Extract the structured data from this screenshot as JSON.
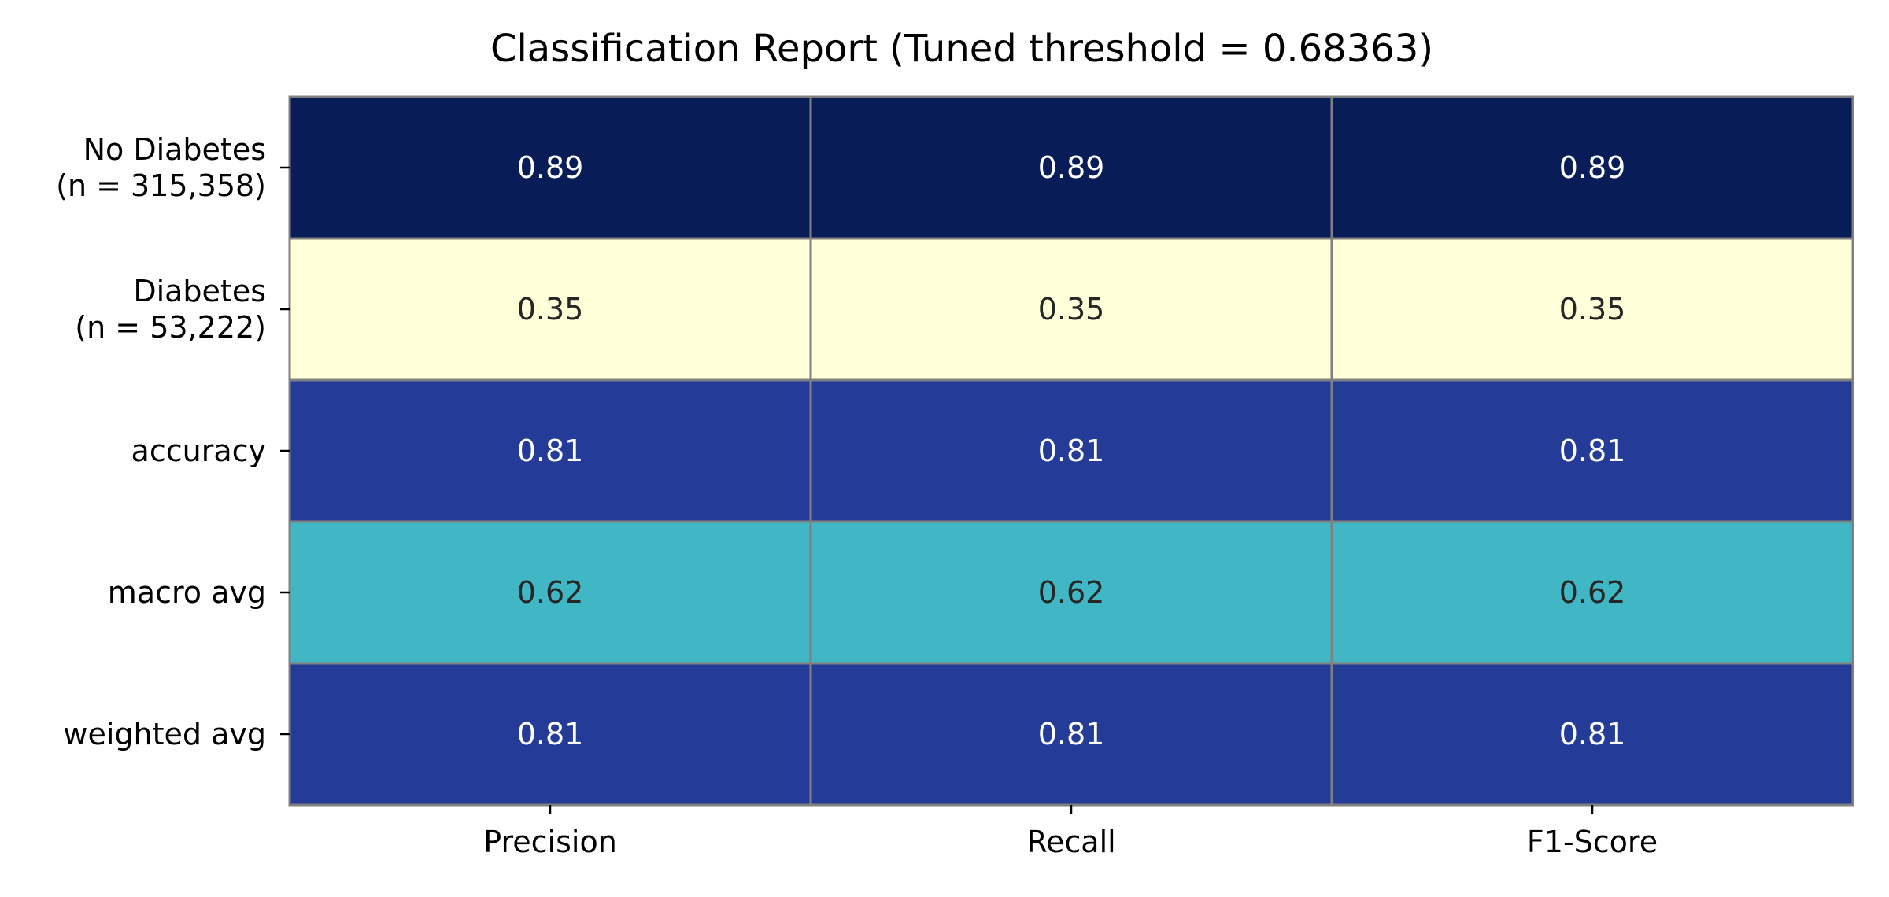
{
  "chart_data": {
    "type": "heatmap",
    "title": "Classification Report (Tuned threshold = 0.68363)",
    "columns": [
      "Precision",
      "Recall",
      "F1-Score"
    ],
    "rows": [
      {
        "label_lines": [
          "No Diabetes",
          "(n = 315,358)"
        ],
        "values": [
          0.89,
          0.89,
          0.89
        ],
        "labels": [
          "0.89",
          "0.89",
          "0.89"
        ]
      },
      {
        "label_lines": [
          "Diabetes",
          "(n = 53,222)"
        ],
        "values": [
          0.35,
          0.35,
          0.35
        ],
        "labels": [
          "0.35",
          "0.35",
          "0.35"
        ]
      },
      {
        "label_lines": [
          "accuracy"
        ],
        "values": [
          0.81,
          0.81,
          0.81
        ],
        "labels": [
          "0.81",
          "0.81",
          "0.81"
        ]
      },
      {
        "label_lines": [
          "macro avg"
        ],
        "values": [
          0.62,
          0.62,
          0.62
        ],
        "labels": [
          "0.62",
          "0.62",
          "0.62"
        ]
      },
      {
        "label_lines": [
          "weighted avg"
        ],
        "values": [
          0.81,
          0.81,
          0.81
        ],
        "labels": [
          "0.81",
          "0.81",
          "0.81"
        ]
      }
    ],
    "colormap": "YlGnBu",
    "value_range": [
      0.35,
      0.89
    ],
    "colorbar": false,
    "cell_border_color": "#808080"
  }
}
